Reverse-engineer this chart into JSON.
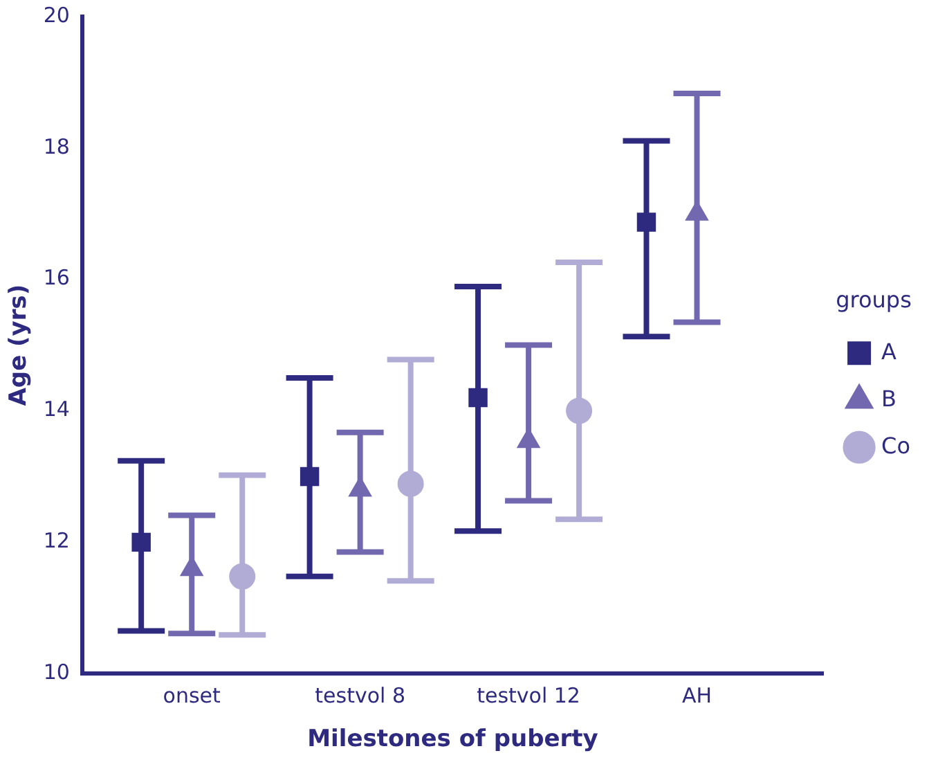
{
  "chart_data": {
    "type": "scatter",
    "xlabel": "Milestones of puberty",
    "ylabel": "Age (yrs)",
    "legend_title": "groups",
    "legend": "right",
    "grid": false,
    "categories": [
      "onset",
      "testvol 8",
      "testvol 12",
      "AH"
    ],
    "ylim": [
      10,
      20
    ],
    "yticks": [
      10,
      12,
      14,
      16,
      18,
      20
    ],
    "series": [
      {
        "name": "A",
        "color": "#2e2a7f",
        "marker": "square",
        "values": [
          12.0,
          13.0,
          14.2,
          16.87
        ],
        "errors": [
          [
            10.65,
            13.24
          ],
          [
            11.48,
            14.5
          ],
          [
            12.17,
            15.89
          ],
          [
            15.13,
            18.11
          ]
        ]
      },
      {
        "name": "B",
        "color": "#7268b0",
        "marker": "triangle",
        "values": [
          11.59,
          12.8,
          13.54,
          17.0
        ],
        "errors": [
          [
            10.61,
            12.41
          ],
          [
            11.85,
            13.67
          ],
          [
            12.63,
            15.0
          ],
          [
            15.35,
            18.83
          ]
        ]
      },
      {
        "name": "Co",
        "color": "#b1acd6",
        "marker": "circle",
        "values": [
          11.48,
          12.89,
          14.0,
          null
        ],
        "errors": [
          [
            10.59,
            13.02
          ],
          [
            11.41,
            14.78
          ],
          [
            12.35,
            16.26
          ],
          null
        ]
      }
    ]
  }
}
